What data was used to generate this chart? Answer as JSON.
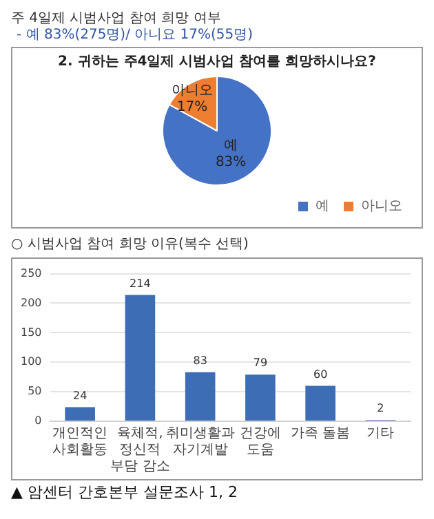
{
  "chart_data": [
    {
      "type": "pie",
      "title": "2. 귀하는 주4일제 시범사업 참여를 희망하시나요?",
      "annotations": [
        "주 4일제 시범사업 참여 희망 여부",
        "- 예 83%(275명)/ 아니요 17%(55명)"
      ],
      "categories": [
        "예",
        "아니오"
      ],
      "values": [
        83,
        17
      ],
      "colors": [
        "#4472c4",
        "#ed7d31"
      ],
      "value_labels": [
        "83%",
        "17%"
      ],
      "legend": "bottom right"
    },
    {
      "type": "bar",
      "annotations": [
        "○ 시범사업 참여 희망 이유(복수 선택)",
        "▲ 암센터 간호본부 설문조사 1, 2"
      ],
      "categories": [
        "개인적인 사회활동",
        "육체적, 정신적 부담 감소",
        "취미생활과 자기계발",
        "건강에 도움",
        "가족 돌봄",
        "기타"
      ],
      "values": [
        24,
        214,
        83,
        79,
        60,
        2
      ],
      "color": "#3d6db5",
      "ylim": [
        0,
        250
      ],
      "yticks": [
        0,
        50,
        100,
        150,
        200,
        250
      ],
      "grid": "y",
      "data_labels": true
    }
  ]
}
